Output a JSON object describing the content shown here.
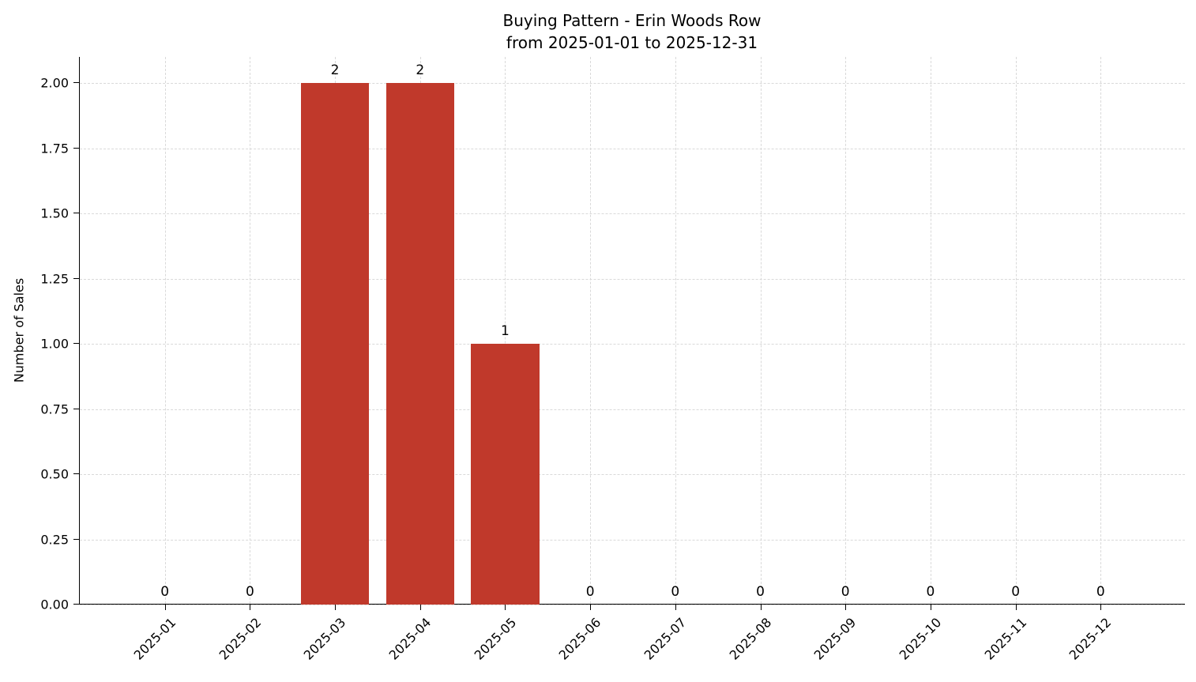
{
  "chart_data": {
    "type": "bar",
    "title": "Buying Pattern - Erin Woods Row",
    "subtitle": "from 2025-01-01 to 2025-12-31",
    "xlabel": "",
    "ylabel": "Number of Sales",
    "categories": [
      "2025-01",
      "2025-02",
      "2025-03",
      "2025-04",
      "2025-05",
      "2025-06",
      "2025-07",
      "2025-08",
      "2025-09",
      "2025-10",
      "2025-11",
      "2025-12"
    ],
    "values": [
      0,
      0,
      2,
      2,
      1,
      0,
      0,
      0,
      0,
      0,
      0,
      0
    ],
    "bar_value_labels": [
      "0",
      "0",
      "2",
      "2",
      "1",
      "0",
      "0",
      "0",
      "0",
      "0",
      "0",
      "0"
    ],
    "ylim": [
      0,
      2.1
    ],
    "yticks": [
      0.0,
      0.25,
      0.5,
      0.75,
      1.0,
      1.25,
      1.5,
      1.75,
      2.0
    ],
    "ytick_labels": [
      "0.00",
      "0.25",
      "0.50",
      "0.75",
      "1.00",
      "1.25",
      "1.50",
      "1.75",
      "2.00"
    ],
    "bar_width_fraction": 0.8,
    "bar_color": "#c0392b",
    "grid": true,
    "grid_color": "#d9d9d9",
    "text_color": "#000000",
    "legend": false
  }
}
